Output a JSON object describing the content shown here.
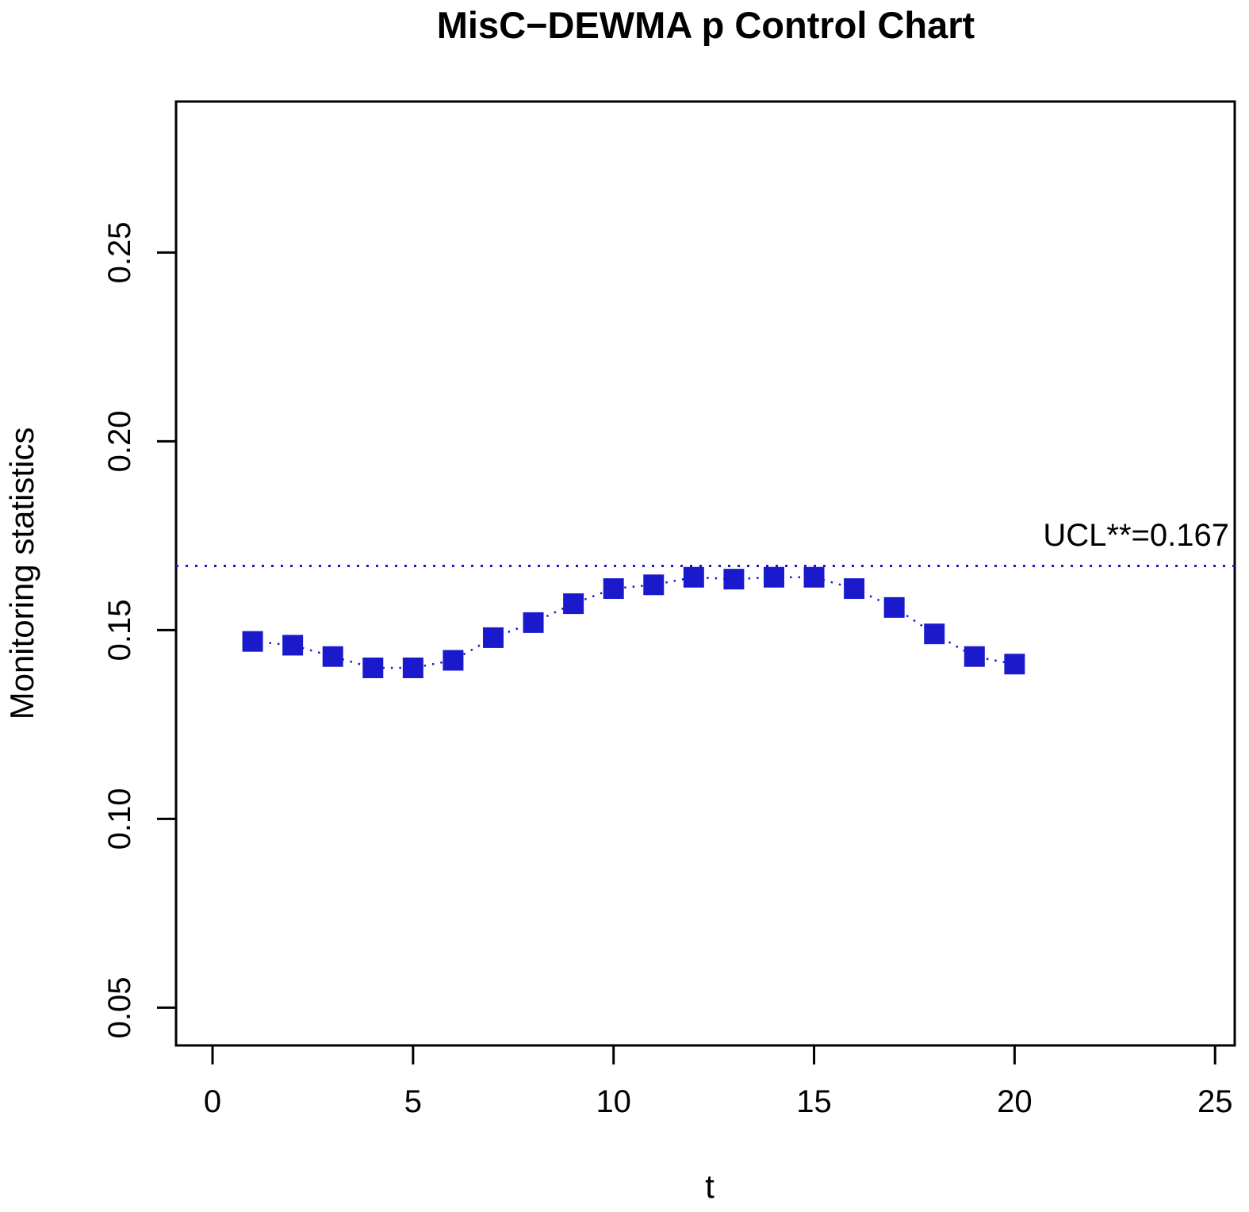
{
  "chart_data": {
    "type": "scatter",
    "title": "MisC−DEWMA p Control Chart",
    "xlabel": "t",
    "ylabel": "Monitoring statistics",
    "x": [
      1,
      2,
      3,
      4,
      5,
      6,
      7,
      8,
      9,
      10,
      11,
      12,
      13,
      14,
      15,
      16,
      17,
      18,
      19,
      20
    ],
    "values": [
      0.147,
      0.146,
      0.143,
      0.14,
      0.14,
      0.142,
      0.148,
      0.152,
      0.157,
      0.161,
      0.162,
      0.164,
      0.1635,
      0.164,
      0.164,
      0.161,
      0.156,
      0.149,
      0.143,
      0.141
    ],
    "ucl": 0.167,
    "ucl_label": "UCL**=0.167",
    "x_ticks": [
      0,
      5,
      10,
      15,
      20,
      25
    ],
    "x_tick_labels": [
      "0",
      "5",
      "10",
      "15",
      "20",
      "25"
    ],
    "y_ticks": [
      0.05,
      0.1,
      0.15,
      0.2,
      0.25
    ],
    "y_tick_labels": [
      "0.05",
      "0.10",
      "0.15",
      "0.20",
      "0.25"
    ],
    "xlim": [
      -0.91,
      25.49
    ],
    "ylim": [
      0.04,
      0.29
    ],
    "grid": false,
    "legend": "none",
    "marker": "filled-square",
    "line_style": "dotted",
    "point_color": "#1a1acc",
    "line_color": "#1a1acc",
    "ucl_line_color": "#1a1acc",
    "axis_color": "#000000",
    "background_color": "#ffffff"
  }
}
